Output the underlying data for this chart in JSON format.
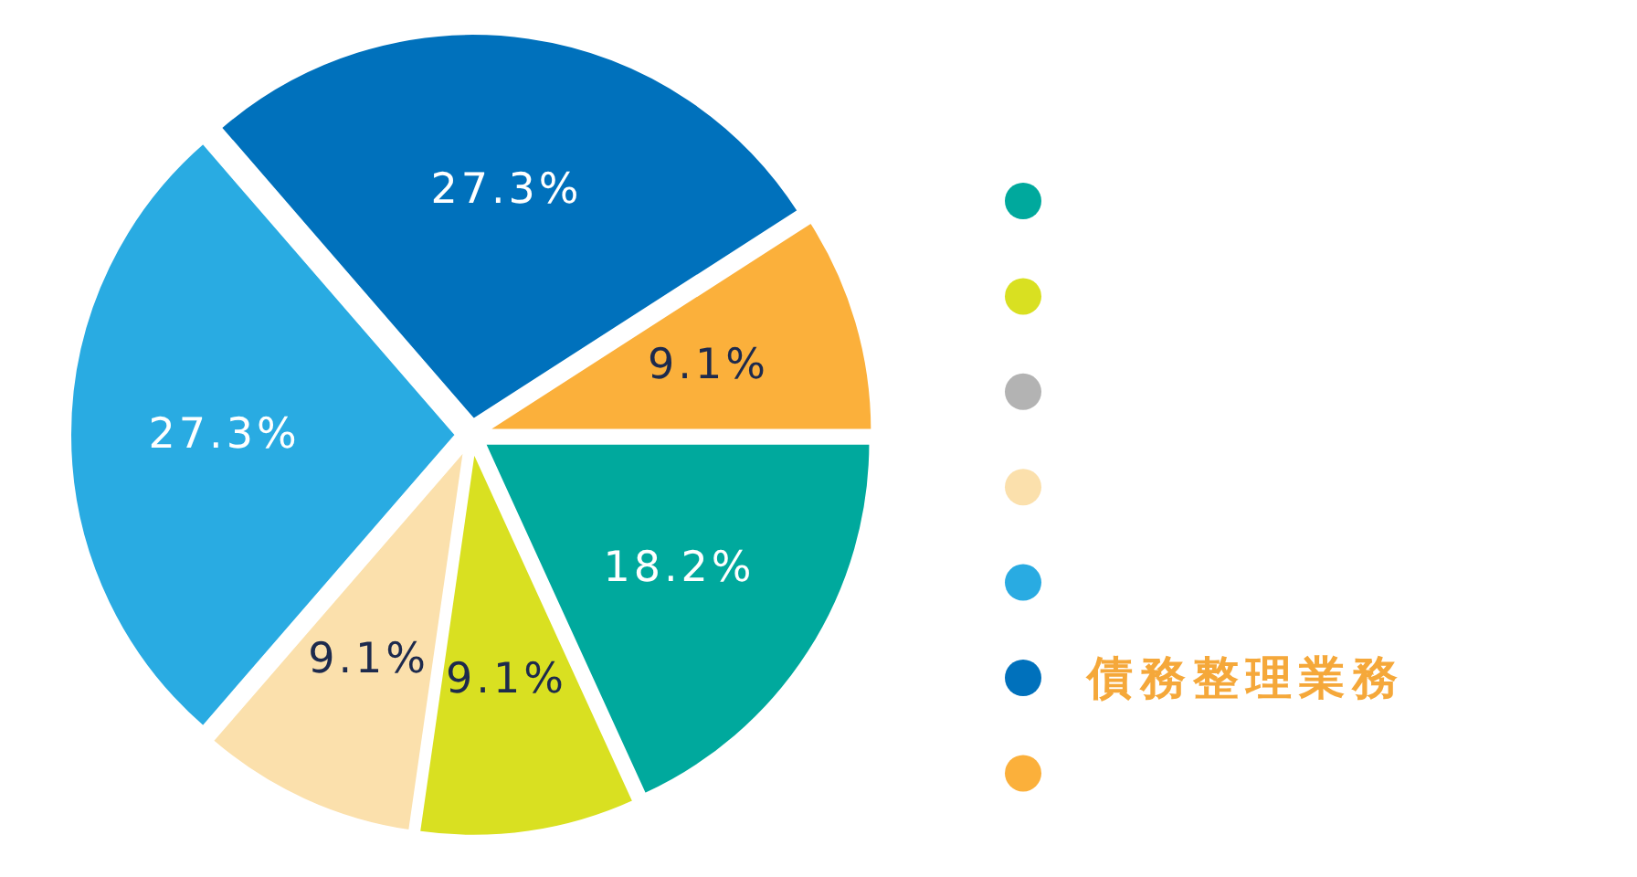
{
  "chart_data": {
    "type": "pie",
    "categories": [
      null,
      null,
      null,
      null,
      null,
      "債務整理業務",
      null
    ],
    "values": [
      18.2,
      9.1,
      0,
      9.1,
      27.3,
      27.3,
      9.1
    ],
    "colors": [
      "#00a99d",
      "#d9e021",
      "#b3b3b3",
      "#fbe0ac",
      "#29abe2",
      "#0071bc",
      "#fbb03b"
    ],
    "value_labels": [
      "18.2%",
      "9.1%",
      null,
      "9.1%",
      "27.3%",
      "27.3%",
      "9.1%"
    ],
    "legend": "right"
  }
}
